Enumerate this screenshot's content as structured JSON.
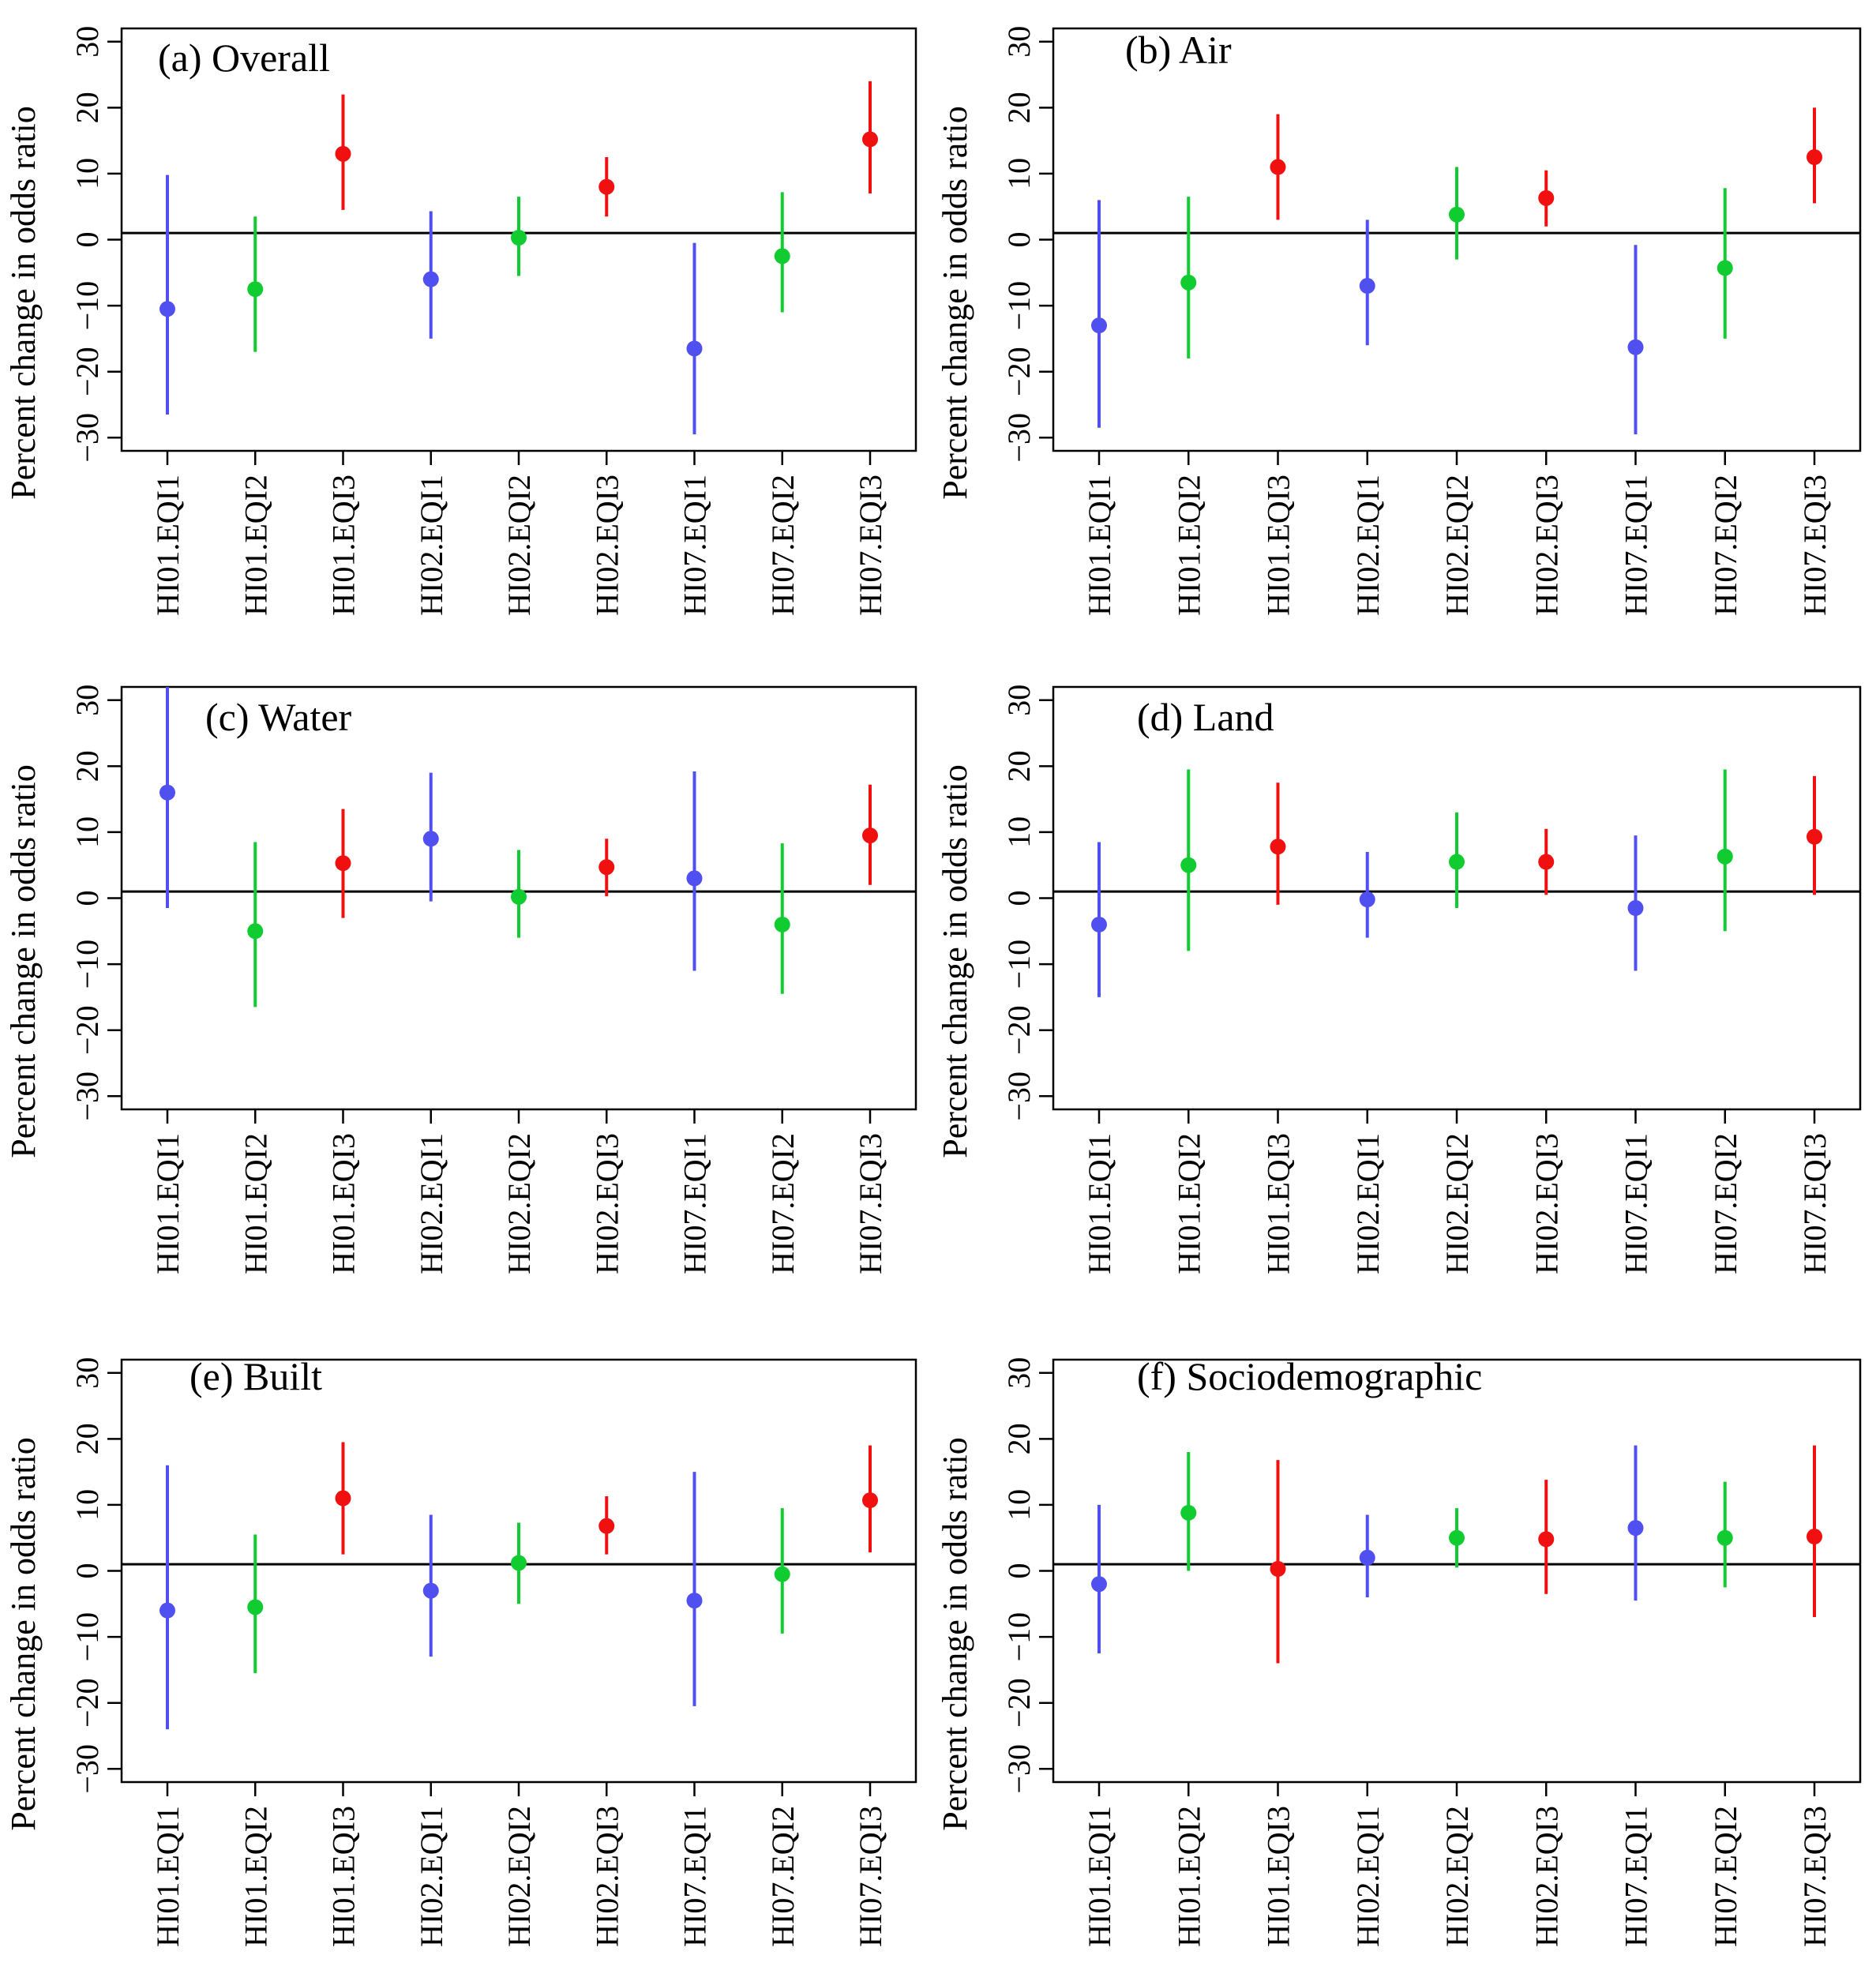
{
  "figure": {
    "ylabel": "Percent change in odds ratio"
  },
  "colors": {
    "EQI1": "#5050f0",
    "EQI2": "#10cc30",
    "EQI3": "#f01010"
  },
  "chart_data": [
    {
      "type": "scatter",
      "title": "(a) Overall",
      "categories": [
        "HI01.EQI1",
        "HI01.EQI2",
        "HI01.EQI3",
        "HI02.EQI1",
        "HI02.EQI2",
        "HI02.EQI3",
        "HI07.EQI1",
        "HI07.EQI2",
        "HI07.EQI3"
      ],
      "values": [
        -10.5,
        -7.5,
        13,
        -6,
        0.3,
        8,
        -16.5,
        -2.5,
        15.2
      ],
      "lower": [
        -26.5,
        -17,
        4.5,
        -15,
        -5.5,
        3.5,
        -29.5,
        -11,
        7
      ],
      "upper": [
        9.8,
        3.5,
        22,
        4.3,
        6.5,
        12.5,
        -0.5,
        7.2,
        24
      ],
      "ylabel": "Percent change in odds ratio",
      "ylim": [
        -32,
        32
      ],
      "yticks": [
        "30",
        "20",
        "10",
        "0",
        "−10",
        "−20",
        "−30"
      ],
      "hline": 1
    },
    {
      "type": "scatter",
      "title": "(b) Air",
      "categories": [
        "HI01.EQI1",
        "HI01.EQI2",
        "HI01.EQI3",
        "HI02.EQI1",
        "HI02.EQI2",
        "HI02.EQI3",
        "HI07.EQI1",
        "HI07.EQI2",
        "HI07.EQI3"
      ],
      "values": [
        -13,
        -6.5,
        11,
        -7,
        3.8,
        6.3,
        -16.3,
        -4.3,
        12.5
      ],
      "lower": [
        -28.5,
        -18,
        3,
        -16,
        -3,
        2,
        -29.5,
        -15,
        5.5
      ],
      "upper": [
        6,
        6.5,
        19,
        3,
        11,
        10.5,
        -0.8,
        7.8,
        20
      ],
      "ylabel": "Percent change in odds ratio",
      "ylim": [
        -32,
        32
      ],
      "yticks": [
        "30",
        "20",
        "10",
        "0",
        "−10",
        "−20",
        "−30"
      ],
      "hline": 1
    },
    {
      "type": "scatter",
      "title": "(c) Water",
      "categories": [
        "HI01.EQI1",
        "HI01.EQI2",
        "HI01.EQI3",
        "HI02.EQI1",
        "HI02.EQI2",
        "HI02.EQI3",
        "HI07.EQI1",
        "HI07.EQI2",
        "HI07.EQI3"
      ],
      "values": [
        16,
        -5,
        5.3,
        9,
        0.2,
        4.7,
        3,
        -4,
        9.5
      ],
      "lower": [
        -1.5,
        -16.5,
        -3,
        -0.5,
        -6,
        0.3,
        -11,
        -14.5,
        2
      ],
      "upper": [
        32,
        8.5,
        13.5,
        19,
        7.3,
        9,
        19.2,
        8.3,
        17.2
      ],
      "ylabel": "Percent change in odds ratio",
      "ylim": [
        -32,
        32
      ],
      "yticks": [
        "30",
        "20",
        "10",
        "0",
        "−10",
        "−20",
        "−30"
      ],
      "hline": 1
    },
    {
      "type": "scatter",
      "title": "(d) Land",
      "categories": [
        "HI01.EQI1",
        "HI01.EQI2",
        "HI01.EQI3",
        "HI02.EQI1",
        "HI02.EQI2",
        "HI02.EQI3",
        "HI07.EQI1",
        "HI07.EQI2",
        "HI07.EQI3"
      ],
      "values": [
        -4,
        5,
        7.8,
        -0.2,
        5.5,
        5.5,
        -1.5,
        6.3,
        9.3
      ],
      "lower": [
        -15,
        -8,
        -1,
        -6,
        -1.5,
        0.5,
        -11,
        -5,
        0.5
      ],
      "upper": [
        8.5,
        19.5,
        17.5,
        7,
        13,
        10.5,
        9.5,
        19.5,
        18.5
      ],
      "ylabel": "Percent change in odds ratio",
      "ylim": [
        -32,
        32
      ],
      "yticks": [
        "30",
        "20",
        "10",
        "0",
        "−10",
        "−20",
        "−30"
      ],
      "hline": 1
    },
    {
      "type": "scatter",
      "title": "(e) Built",
      "categories": [
        "HI01.EQI1",
        "HI01.EQI2",
        "HI01.EQI3",
        "HI02.EQI1",
        "HI02.EQI2",
        "HI02.EQI3",
        "HI07.EQI1",
        "HI07.EQI2",
        "HI07.EQI3"
      ],
      "values": [
        -6,
        -5.5,
        11,
        -3,
        1.2,
        6.8,
        -4.5,
        -0.5,
        10.7
      ],
      "lower": [
        -24,
        -15.5,
        2.5,
        -13,
        -5,
        2.5,
        -20.5,
        -9.5,
        2.8
      ],
      "upper": [
        16,
        5.5,
        19.5,
        8.5,
        7.3,
        11.3,
        15,
        9.5,
        19
      ],
      "ylabel": "Percent change in odds ratio",
      "ylim": [
        -32,
        32
      ],
      "yticks": [
        "30",
        "20",
        "10",
        "0",
        "−10",
        "−20",
        "−30"
      ],
      "hline": 1
    },
    {
      "type": "scatter",
      "title": "(f) Sociodemographic",
      "categories": [
        "HI01.EQI1",
        "HI01.EQI2",
        "HI01.EQI3",
        "HI02.EQI1",
        "HI02.EQI2",
        "HI02.EQI3",
        "HI07.EQI1",
        "HI07.EQI2",
        "HI07.EQI3"
      ],
      "values": [
        -2,
        8.8,
        0.3,
        2,
        5,
        4.8,
        6.5,
        5,
        5.2
      ],
      "lower": [
        -12.5,
        0,
        -14,
        -4,
        0.5,
        -3.5,
        -4.5,
        -2.5,
        -7
      ],
      "upper": [
        10,
        18,
        16.8,
        8.5,
        9.5,
        13.8,
        19,
        13.5,
        19
      ],
      "ylabel": "Percent change in odds ratio",
      "ylim": [
        -32,
        32
      ],
      "yticks": [
        "30",
        "20",
        "10",
        "0",
        "−10",
        "−20",
        "−30"
      ],
      "hline": 1
    }
  ]
}
